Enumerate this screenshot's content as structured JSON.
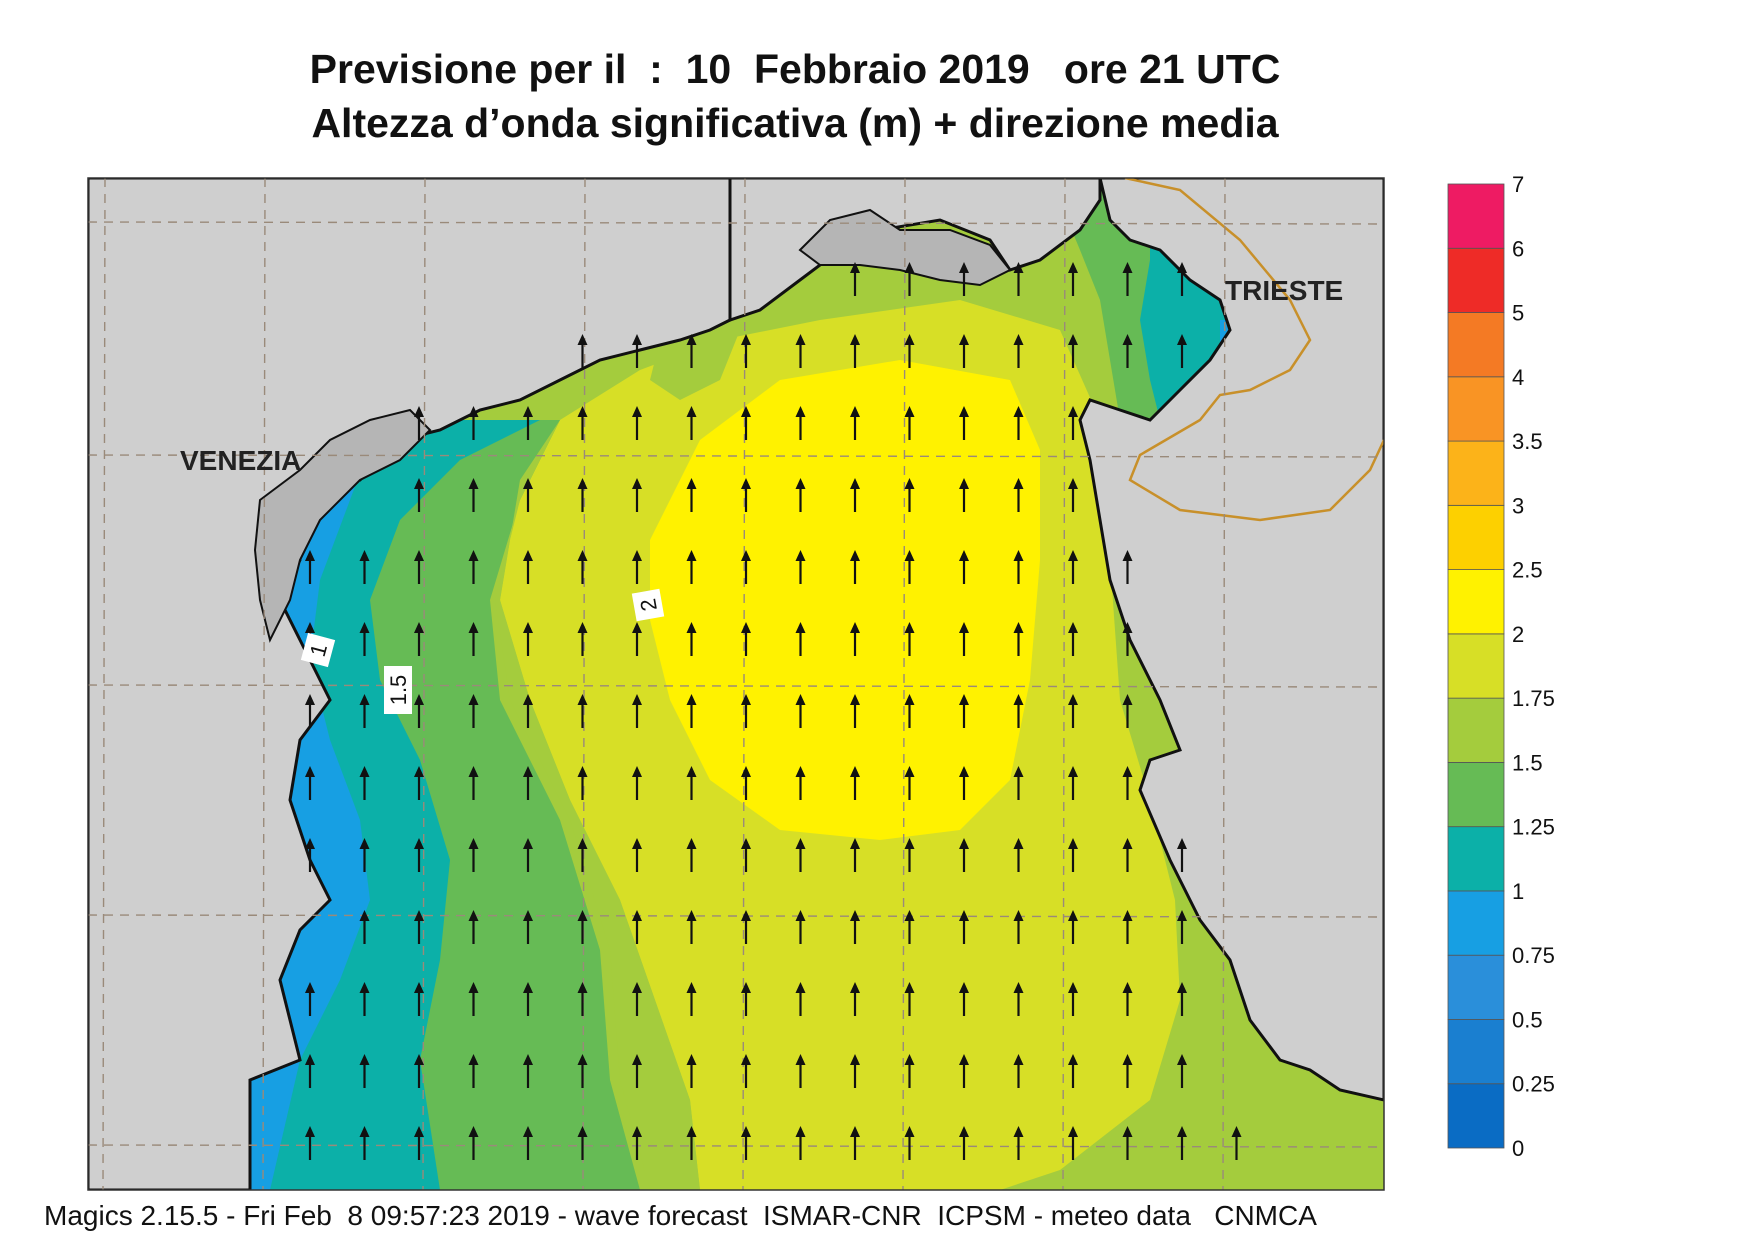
{
  "header": {
    "title_line1": "Previsione per il  :  10  Febbraio 2019   ore 21 UTC",
    "title_line2": "Altezza d’onda significativa (m) + direzione media"
  },
  "map": {
    "cities": [
      "VENEZIA",
      "TRIESTE"
    ],
    "contour_labels": [
      "1",
      "1.5",
      "2"
    ],
    "arrow_direction": "north",
    "colors": {
      "land": "#cfcfcf",
      "coast": "#111111",
      "border": "#c8902a",
      "grid": "#9a8a7a"
    }
  },
  "colorbar": {
    "labels": [
      "0",
      "0.25",
      "0.5",
      "0.75",
      "1",
      "1.25",
      "1.5",
      "1.75",
      "2",
      "2.5",
      "3",
      "3.5",
      "4",
      "5",
      "6",
      "7"
    ],
    "colors": [
      "#0a6cc4",
      "#1a7fd0",
      "#2a8fda",
      "#179fe3",
      "#0cb0a8",
      "#66bb55",
      "#a4cc3d",
      "#d7df26",
      "#fff200",
      "#fdd000",
      "#fcb319",
      "#f99424",
      "#f47a24",
      "#ee2b27",
      "#ee1b63"
    ]
  },
  "footer": {
    "text": "Magics 2.15.5 - Fri Feb  8 09:57:23 2019 - wave forecast  ISMAR-CNR  ICPSM - meteo data   CNMCA"
  }
}
